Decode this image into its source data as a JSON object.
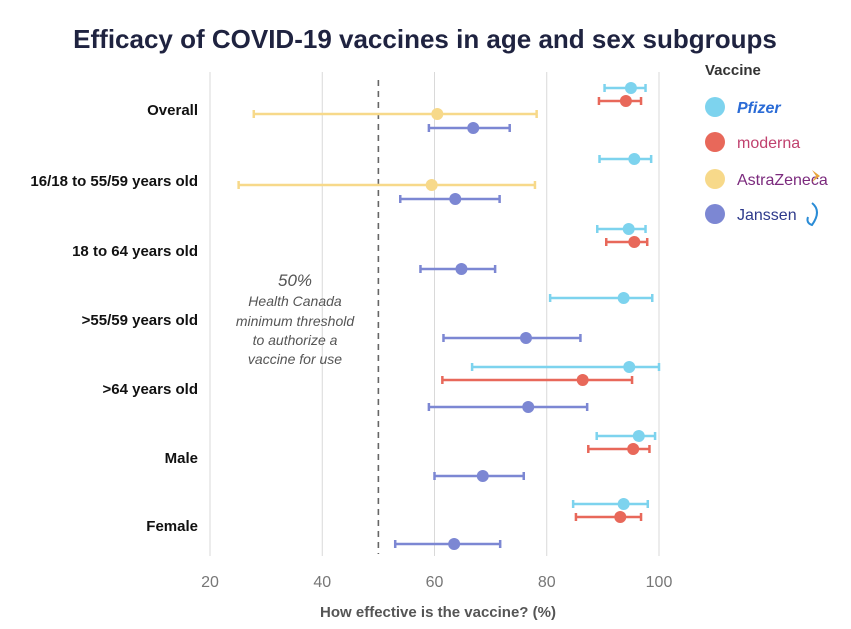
{
  "chart_data": {
    "type": "scatter",
    "title": "Efficacy of COVID-19 vaccines in age and sex subgroups",
    "xlabel": "How effective is the vaccine? (%)",
    "xlim": [
      20,
      100
    ],
    "xticks": [
      "20",
      "40",
      "60",
      "80",
      "100"
    ],
    "grid": true,
    "legend_title": "Vaccine",
    "legend_position": "top-right",
    "categories": [
      "Overall",
      "16/18 to 55/59 years old",
      "18 to 64 years old",
      ">55/59 years old",
      ">64 years old",
      "Male",
      "Female"
    ],
    "threshold": {
      "x": 50,
      "lines": [
        "50%",
        "Health Canada",
        "minimum threshold",
        "to authorize a",
        "vaccine for use"
      ]
    },
    "series": [
      {
        "name": "Pfizer",
        "color": "#7dd3ee",
        "points": [
          {
            "category": "Overall",
            "value": 95,
            "low": 90.3,
            "high": 97.6
          },
          {
            "category": "16/18 to 55/59 years old",
            "value": 95.6,
            "low": 89.4,
            "high": 98.6
          },
          {
            "category": "18 to 64 years old",
            "value": 94.6,
            "low": 89,
            "high": 97.6
          },
          {
            "category": ">55/59 years old",
            "value": 93.7,
            "low": 80.6,
            "high": 98.8
          },
          {
            "category": ">64 years old",
            "value": 94.7,
            "low": 66.7,
            "high": 100
          },
          {
            "category": "Male",
            "value": 96.4,
            "low": 88.9,
            "high": 99.3
          },
          {
            "category": "Female",
            "value": 93.7,
            "low": 84.7,
            "high": 98
          }
        ]
      },
      {
        "name": "moderna",
        "color": "#e8685a",
        "points": [
          {
            "category": "Overall",
            "value": 94.1,
            "low": 89.3,
            "high": 96.8
          },
          {
            "category": "18 to 64 years old",
            "value": 95.6,
            "low": 90.6,
            "high": 97.9
          },
          {
            "category": ">64 years old",
            "value": 86.4,
            "low": 61.4,
            "high": 95.2
          },
          {
            "category": "Male",
            "value": 95.4,
            "low": 87.4,
            "high": 98.3
          },
          {
            "category": "Female",
            "value": 93.1,
            "low": 85.2,
            "high": 96.8
          }
        ]
      },
      {
        "name": "AstraZeneca",
        "color": "#f7d98a",
        "points": [
          {
            "category": "Overall",
            "value": 60.5,
            "low": 27.8,
            "high": 78.2
          },
          {
            "category": "16/18 to 55/59 years old",
            "value": 59.5,
            "low": 25.1,
            "high": 77.9
          }
        ]
      },
      {
        "name": "Janssen",
        "color": "#7c87d3",
        "points": [
          {
            "category": "Overall",
            "value": 66.9,
            "low": 59,
            "high": 73.4
          },
          {
            "category": "16/18 to 55/59 years old",
            "value": 63.7,
            "low": 53.9,
            "high": 71.6
          },
          {
            "category": "18 to 64 years old",
            "value": 64.8,
            "low": 57.5,
            "high": 70.8
          },
          {
            "category": ">55/59 years old",
            "value": 76.3,
            "low": 61.6,
            "high": 86
          },
          {
            "category": ">64 years old",
            "value": 76.7,
            "low": 59,
            "high": 87.2
          },
          {
            "category": "Male",
            "value": 68.6,
            "low": 60,
            "high": 75.9
          },
          {
            "category": "Female",
            "value": 63.5,
            "low": 53,
            "high": 71.7
          }
        ]
      }
    ]
  }
}
